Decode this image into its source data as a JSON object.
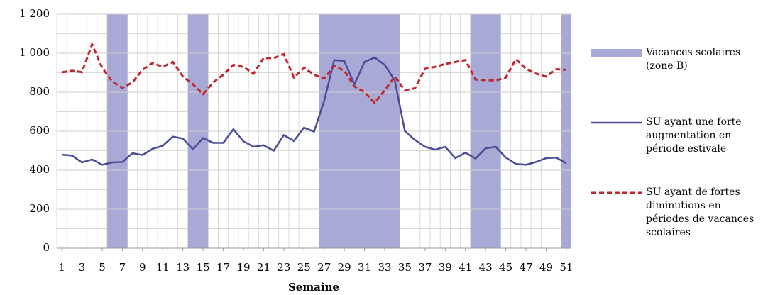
{
  "chart_data": {
    "type": "line",
    "x_label": "Semaine",
    "x": [
      1,
      2,
      3,
      4,
      5,
      6,
      7,
      8,
      9,
      10,
      11,
      12,
      13,
      14,
      15,
      16,
      17,
      18,
      19,
      20,
      21,
      22,
      23,
      24,
      25,
      26,
      27,
      28,
      29,
      30,
      31,
      32,
      33,
      34,
      35,
      36,
      37,
      38,
      39,
      40,
      41,
      42,
      43,
      44,
      45,
      46,
      47,
      48,
      49,
      50,
      51
    ],
    "xlim": [
      0.5,
      51.5
    ],
    "xticks": [
      1,
      3,
      5,
      7,
      9,
      11,
      13,
      15,
      17,
      19,
      21,
      23,
      25,
      27,
      29,
      31,
      33,
      35,
      37,
      39,
      41,
      43,
      45,
      47,
      49,
      51
    ],
    "ylim": [
      0,
      1200
    ],
    "yticks": [
      0,
      200,
      400,
      600,
      800,
      {
        "value": 1000,
        "label": "1 000"
      },
      {
        "value": 1200,
        "label": "1 200"
      }
    ],
    "grid": true,
    "bands": {
      "name": "Vacances scolaires (zone B)",
      "color": "#a9a9d6",
      "ranges": [
        [
          6,
          7
        ],
        [
          14,
          15
        ],
        [
          27,
          34
        ],
        [
          42,
          44
        ],
        [
          51,
          51
        ]
      ]
    },
    "series": [
      {
        "name": "SU ayant une forte augmentation en période estivale",
        "color": "#4a4a96",
        "dash": false,
        "values": [
          480,
          475,
          440,
          455,
          428,
          440,
          442,
          487,
          478,
          510,
          525,
          572,
          562,
          507,
          565,
          540,
          540,
          610,
          548,
          520,
          528,
          500,
          580,
          550,
          618,
          598,
          755,
          965,
          960,
          840,
          955,
          978,
          940,
          860,
          600,
          555,
          520,
          505,
          520,
          462,
          490,
          460,
          512,
          520,
          465,
          432,
          428,
          442,
          462,
          465,
          435
        ]
      },
      {
        "name": "SU ayant de fortes diminutions en périodes de vacances scolaires",
        "color": "#c0262d",
        "dash": true,
        "values": [
          902,
          910,
          903,
          1045,
          925,
          855,
          822,
          850,
          915,
          950,
          930,
          955,
          880,
          840,
          790,
          850,
          890,
          940,
          930,
          895,
          975,
          975,
          995,
          875,
          925,
          890,
          870,
          935,
          910,
          830,
          800,
          745,
          810,
          880,
          810,
          820,
          920,
          930,
          945,
          955,
          965,
          865,
          862,
          860,
          875,
          970,
          920,
          895,
          880,
          918,
          915
        ]
      }
    ]
  }
}
